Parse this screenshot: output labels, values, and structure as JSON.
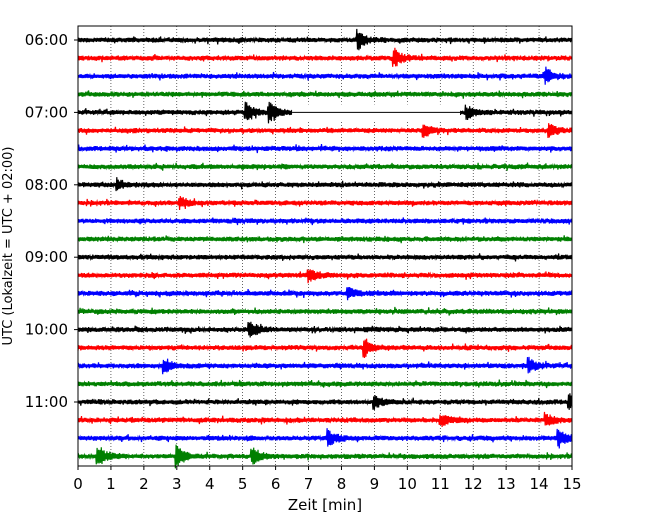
{
  "chart_data": {
    "type": "line",
    "title": "",
    "xlabel": "Zeit  [min]",
    "ylabel": "UTC (Lokalzeit = UTC + 02:00)",
    "xlim": [
      0,
      15
    ],
    "x_ticks": [
      "0",
      "1",
      "2",
      "3",
      "4",
      "5",
      "6",
      "7",
      "8",
      "9",
      "10",
      "11",
      "12",
      "13",
      "14",
      "15"
    ],
    "y_tick_labels": [
      {
        "label": "06:00",
        "row": 0
      },
      {
        "label": "07:00",
        "row": 4
      },
      {
        "label": "08:00",
        "row": 8
      },
      {
        "label": "09:00",
        "row": 12
      },
      {
        "label": "10:00",
        "row": 16
      },
      {
        "label": "11:00",
        "row": 20
      }
    ],
    "row_interval_minutes": 15,
    "row_count": 24,
    "colors": [
      "#000000",
      "#ff0000",
      "#0000ff",
      "#008000"
    ],
    "grid": "vertical dotted at each minute",
    "gap": {
      "row": 4,
      "x_start_min": 6.5,
      "x_end_min": 11.6
    },
    "events": [
      {
        "row": 0,
        "t": 8.5,
        "amp": 0.5
      },
      {
        "row": 1,
        "t": 9.6,
        "amp": 0.5
      },
      {
        "row": 2,
        "t": 14.2,
        "amp": 0.4
      },
      {
        "row": 4,
        "t": 5.1,
        "amp": 0.55
      },
      {
        "row": 4,
        "t": 5.8,
        "amp": 0.5
      },
      {
        "row": 4,
        "t": 11.8,
        "amp": 0.35
      },
      {
        "row": 5,
        "t": 10.5,
        "amp": 0.35
      },
      {
        "row": 5,
        "t": 14.3,
        "amp": 0.35
      },
      {
        "row": 8,
        "t": 1.2,
        "amp": 0.3
      },
      {
        "row": 9,
        "t": 3.1,
        "amp": 0.3
      },
      {
        "row": 13,
        "t": 7.0,
        "amp": 0.35
      },
      {
        "row": 14,
        "t": 8.2,
        "amp": 0.3
      },
      {
        "row": 16,
        "t": 5.2,
        "amp": 0.5
      },
      {
        "row": 17,
        "t": 8.7,
        "amp": 0.5
      },
      {
        "row": 18,
        "t": 2.6,
        "amp": 0.4
      },
      {
        "row": 18,
        "t": 13.7,
        "amp": 0.4
      },
      {
        "row": 20,
        "t": 9.0,
        "amp": 0.35
      },
      {
        "row": 20,
        "t": 14.9,
        "amp": 0.4
      },
      {
        "row": 21,
        "t": 11.0,
        "amp": 0.35
      },
      {
        "row": 21,
        "t": 14.2,
        "amp": 0.35
      },
      {
        "row": 22,
        "t": 7.6,
        "amp": 0.45
      },
      {
        "row": 22,
        "t": 14.6,
        "amp": 0.45
      },
      {
        "row": 23,
        "t": 0.6,
        "amp": 0.6
      },
      {
        "row": 23,
        "t": 3.0,
        "amp": 0.55
      },
      {
        "row": 23,
        "t": 5.3,
        "amp": 0.45
      }
    ]
  }
}
